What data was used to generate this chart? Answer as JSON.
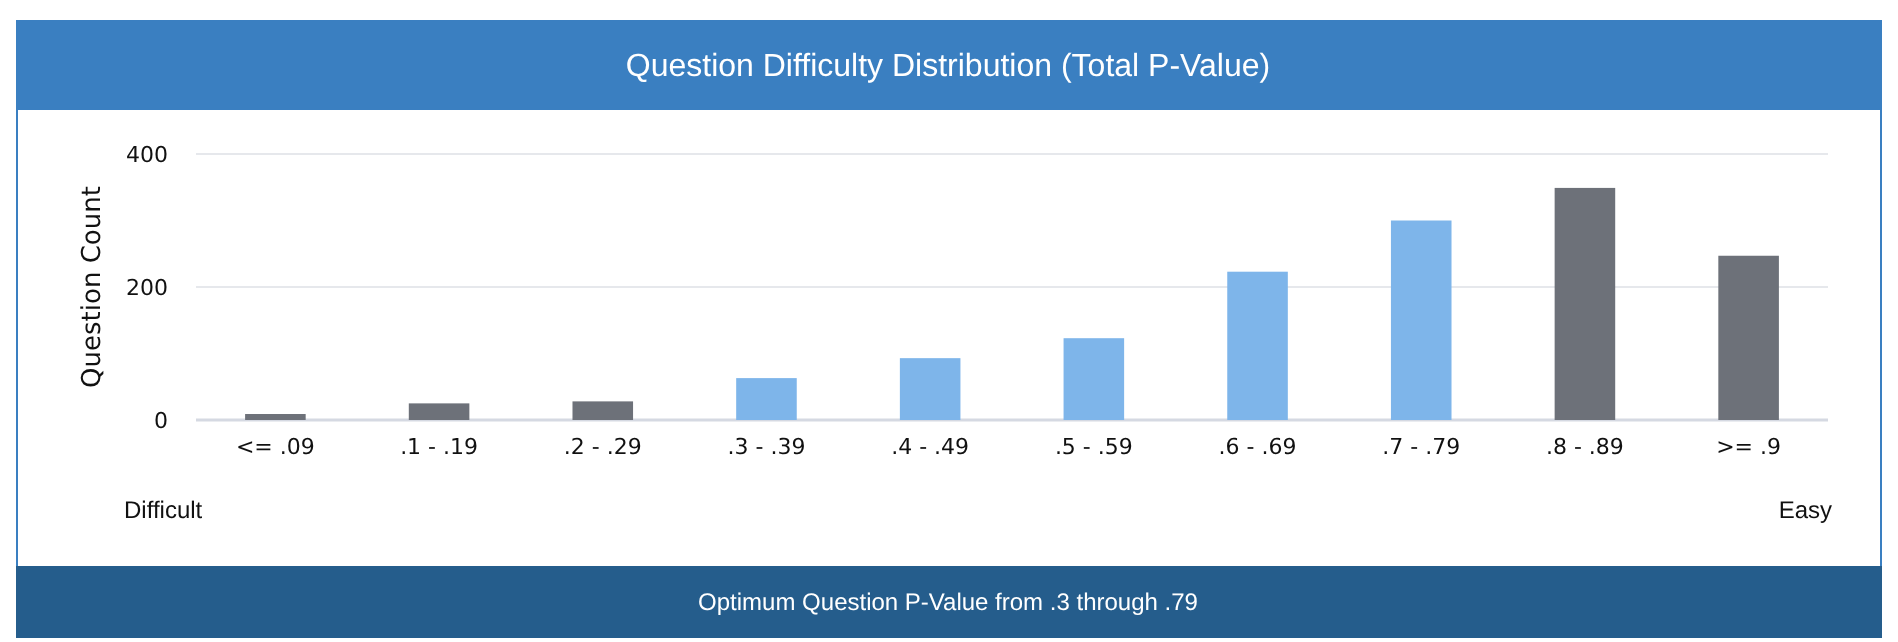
{
  "chart_data": {
    "type": "bar",
    "title": "Question Difficulty Distribution (Total P-Value)",
    "ylabel": "Question Count",
    "categories": [
      "<= .09",
      ".1 - .19",
      ".2 - .29",
      ".3 - .39",
      ".4 - .49",
      ".5 - .59",
      ".6 - .69",
      ".7 - .79",
      ".8 - .89",
      ">= .9"
    ],
    "values": [
      9,
      25,
      28,
      63,
      93,
      123,
      223,
      300,
      349,
      247
    ],
    "colors": [
      "#6d7179",
      "#6d7179",
      "#6d7179",
      "#7eb5ea",
      "#7eb5ea",
      "#7eb5ea",
      "#7eb5ea",
      "#7eb5ea",
      "#6d7179",
      "#6d7179"
    ],
    "ylim": [
      0,
      400
    ],
    "yticks": [
      0,
      200,
      400
    ],
    "grid": "y",
    "annotations": [
      "Difficult",
      "Easy",
      "Optimum Question P-Value from .3 through .79"
    ]
  }
}
